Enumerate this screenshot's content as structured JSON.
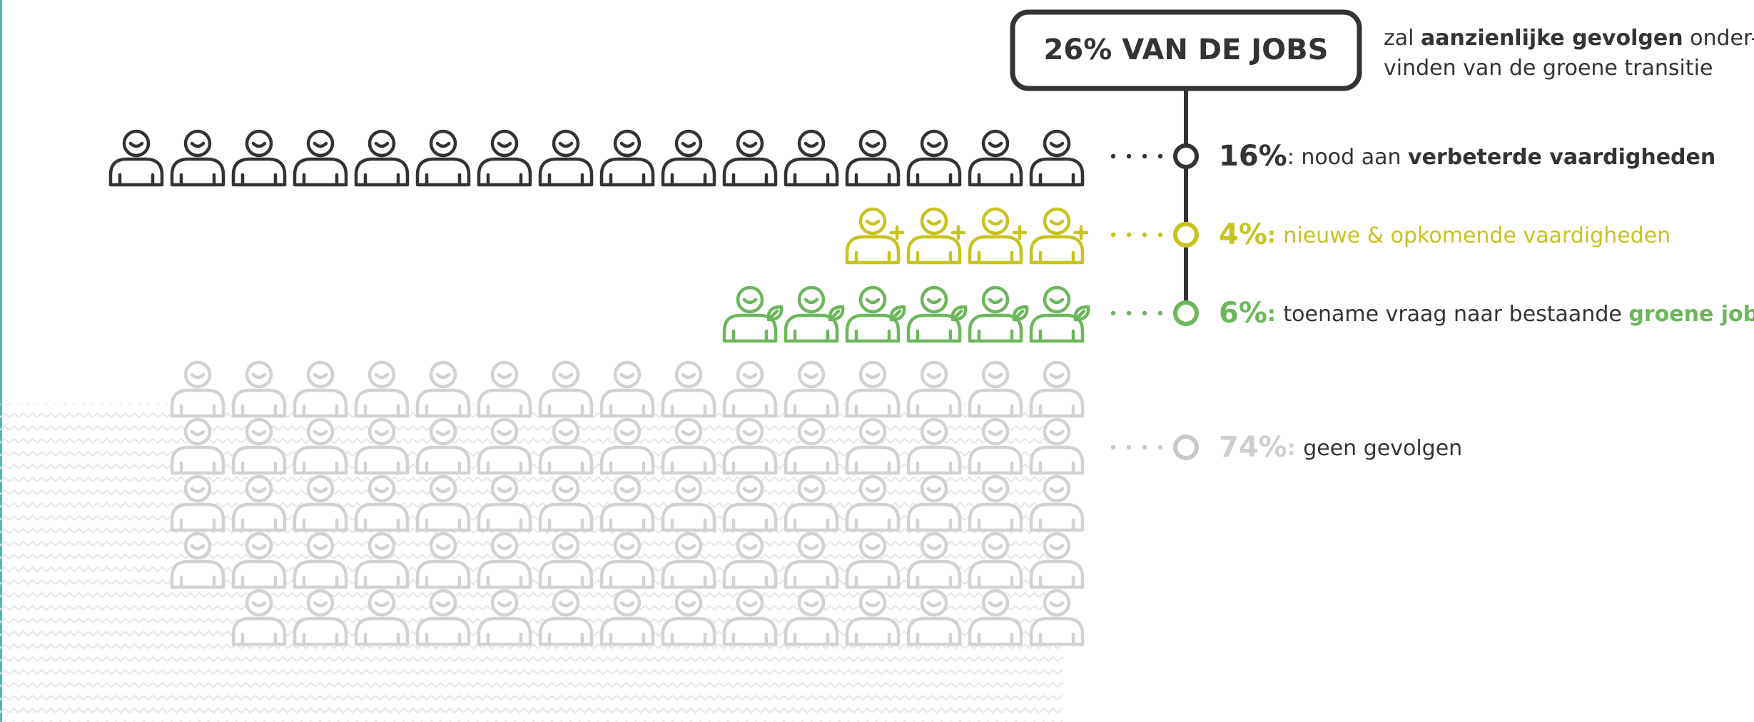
{
  "chart_data": {
    "type": "pictograph",
    "title": "26% VAN DE JOBS",
    "subtitle": [
      [
        {
          "text": "zal "
        },
        {
          "text": "aanzienlijke gevolgen",
          "bold": true
        },
        {
          "text": " onder-"
        }
      ],
      [
        {
          "text": "vinden van de groene transitie"
        }
      ]
    ],
    "values": [
      16,
      4,
      6,
      74
    ],
    "value_labels": [
      "16%",
      "4%",
      "6%",
      "74%"
    ],
    "colors": [
      "#333333",
      "#c8c31f",
      "#6cb65b",
      "#d2d2d2"
    ],
    "icons": [
      "plain",
      "plus",
      "leaf",
      "plain"
    ],
    "labels": [
      [
        {
          "text": ": nood aan "
        },
        {
          "text": "verbeterde vaardigheden",
          "bold": true
        }
      ],
      [
        {
          "text": ": ",
          "bold": true,
          "accent": true
        },
        {
          "text": "nieuwe & opkomende vaardigheden",
          "accent": true
        }
      ],
      [
        {
          "text": ": ",
          "bold": true,
          "accent": true
        },
        {
          "text": "toename vraag naar bestaande "
        },
        {
          "text": "groene jobs",
          "bold": true,
          "accent": true
        }
      ],
      [
        {
          "text": ": ",
          "bold": true,
          "accent": true
        },
        {
          "text": "geen gevolgen"
        }
      ]
    ]
  }
}
